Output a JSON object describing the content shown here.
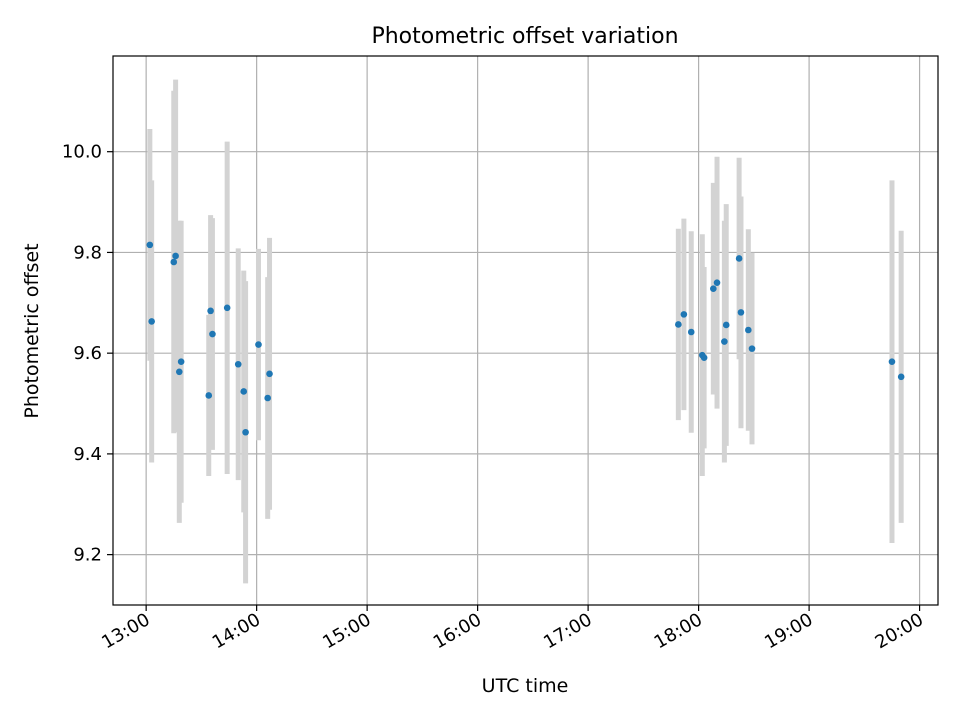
{
  "chart_data": {
    "type": "scatter",
    "title": "Photometric offset variation",
    "xlabel": "UTC time",
    "ylabel": "Photometric offset",
    "x_tick_labels": [
      "13:00",
      "14:00",
      "15:00",
      "16:00",
      "17:00",
      "18:00",
      "19:00",
      "20:00"
    ],
    "y_tick_labels": [
      "9.2",
      "9.4",
      "9.6",
      "9.8",
      "10.0"
    ],
    "xlim": [
      "12:42",
      "20:10"
    ],
    "ylim": [
      9.1,
      10.19
    ],
    "grid": true,
    "colors": {
      "points": "#1f77b4",
      "errorbars": "#d3d3d3",
      "grid": "#b0b0b0"
    },
    "points": [
      {
        "t": "13:02",
        "y": 9.815,
        "err": 0.23
      },
      {
        "t": "13:03",
        "y": 9.663,
        "err": 0.28
      },
      {
        "t": "13:15",
        "y": 9.781,
        "err": 0.34
      },
      {
        "t": "13:16",
        "y": 9.793,
        "err": 0.35
      },
      {
        "t": "13:18",
        "y": 9.563,
        "err": 0.3
      },
      {
        "t": "13:19",
        "y": 9.583,
        "err": 0.28
      },
      {
        "t": "13:34",
        "y": 9.516,
        "err": 0.16
      },
      {
        "t": "13:35",
        "y": 9.684,
        "err": 0.19
      },
      {
        "t": "13:36",
        "y": 9.638,
        "err": 0.23
      },
      {
        "t": "13:44",
        "y": 9.69,
        "err": 0.33
      },
      {
        "t": "13:50",
        "y": 9.578,
        "err": 0.23
      },
      {
        "t": "13:53",
        "y": 9.524,
        "err": 0.24
      },
      {
        "t": "13:54",
        "y": 9.443,
        "err": 0.3
      },
      {
        "t": "14:01",
        "y": 9.617,
        "err": 0.19
      },
      {
        "t": "14:06",
        "y": 9.511,
        "err": 0.24
      },
      {
        "t": "14:07",
        "y": 9.559,
        "err": 0.27
      },
      {
        "t": "17:49",
        "y": 9.657,
        "err": 0.19
      },
      {
        "t": "17:52",
        "y": 9.677,
        "err": 0.19
      },
      {
        "t": "17:56",
        "y": 9.642,
        "err": 0.2
      },
      {
        "t": "18:02",
        "y": 9.596,
        "err": 0.24
      },
      {
        "t": "18:03",
        "y": 9.591,
        "err": 0.18
      },
      {
        "t": "18:08",
        "y": 9.728,
        "err": 0.21
      },
      {
        "t": "18:10",
        "y": 9.74,
        "err": 0.25
      },
      {
        "t": "18:14",
        "y": 9.623,
        "err": 0.24
      },
      {
        "t": "18:15",
        "y": 9.656,
        "err": 0.24
      },
      {
        "t": "18:22",
        "y": 9.788,
        "err": 0.2
      },
      {
        "t": "18:23",
        "y": 9.681,
        "err": 0.23
      },
      {
        "t": "18:27",
        "y": 9.646,
        "err": 0.2
      },
      {
        "t": "18:29",
        "y": 9.609,
        "err": 0.19
      },
      {
        "t": "19:45",
        "y": 9.583,
        "err": 0.36
      },
      {
        "t": "19:50",
        "y": 9.553,
        "err": 0.29
      }
    ]
  }
}
